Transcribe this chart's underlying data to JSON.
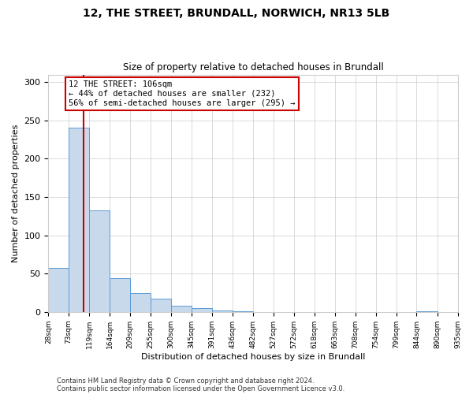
{
  "title_line1": "12, THE STREET, BRUNDALL, NORWICH, NR13 5LB",
  "title_line2": "Size of property relative to detached houses in Brundall",
  "xlabel": "Distribution of detached houses by size in Brundall",
  "ylabel": "Number of detached properties",
  "bin_edges": [
    28,
    73,
    119,
    164,
    209,
    255,
    300,
    345,
    391,
    436,
    482,
    527,
    572,
    618,
    663,
    708,
    754,
    799,
    844,
    890,
    935
  ],
  "bar_heights": [
    57,
    241,
    133,
    44,
    25,
    17,
    8,
    5,
    2,
    1,
    0,
    0,
    0,
    0,
    0,
    0,
    0,
    0,
    1,
    0
  ],
  "bar_color": "#c9d9ec",
  "bar_edge_color": "#5b9bd5",
  "property_size": 106,
  "vline_color": "#cc0000",
  "annotation_text": "12 THE STREET: 106sqm\n← 44% of detached houses are smaller (232)\n56% of semi-detached houses are larger (295) →",
  "annotation_box_color": "#ffffff",
  "annotation_box_edge_color": "#cc0000",
  "ylim": [
    0,
    310
  ],
  "yticks": [
    0,
    50,
    100,
    150,
    200,
    250,
    300
  ],
  "tick_labels": [
    "28sqm",
    "73sqm",
    "119sqm",
    "164sqm",
    "209sqm",
    "255sqm",
    "300sqm",
    "345sqm",
    "391sqm",
    "436sqm",
    "482sqm",
    "527sqm",
    "572sqm",
    "618sqm",
    "663sqm",
    "708sqm",
    "754sqm",
    "799sqm",
    "844sqm",
    "890sqm",
    "935sqm"
  ],
  "footer_line1": "Contains HM Land Registry data © Crown copyright and database right 2024.",
  "footer_line2": "Contains public sector information licensed under the Open Government Licence v3.0.",
  "background_color": "#ffffff",
  "grid_color": "#cccccc"
}
